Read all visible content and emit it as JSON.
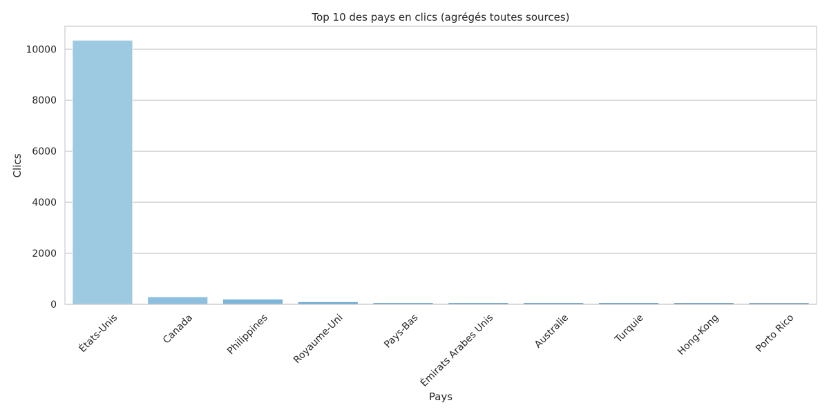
{
  "chart_data": {
    "type": "bar",
    "title": "Top 10 des pays en clics (agrégés toutes sources)",
    "xlabel": "Pays",
    "ylabel": "Clics",
    "categories": [
      "États-Unis",
      "Canada",
      "Philippines",
      "Royaume-Uni",
      "Pays-Bas",
      "Émirats Arabes Unis",
      "Australie",
      "Turquie",
      "Hong-Kong",
      "Porto Rico"
    ],
    "values": [
      10350,
      290,
      200,
      95,
      62,
      60,
      58,
      57,
      55,
      52
    ],
    "ylim": [
      0,
      10900
    ],
    "yticks": [
      0,
      2000,
      4000,
      6000,
      8000,
      10000
    ],
    "grid": "horizontal",
    "colors": [
      "#9ecae1",
      "#8dbfde",
      "#7db4da",
      "#6daad5",
      "#5d9fcf",
      "#4f94c8",
      "#4188c0",
      "#367db7",
      "#2b71ac",
      "#2166a0"
    ]
  }
}
